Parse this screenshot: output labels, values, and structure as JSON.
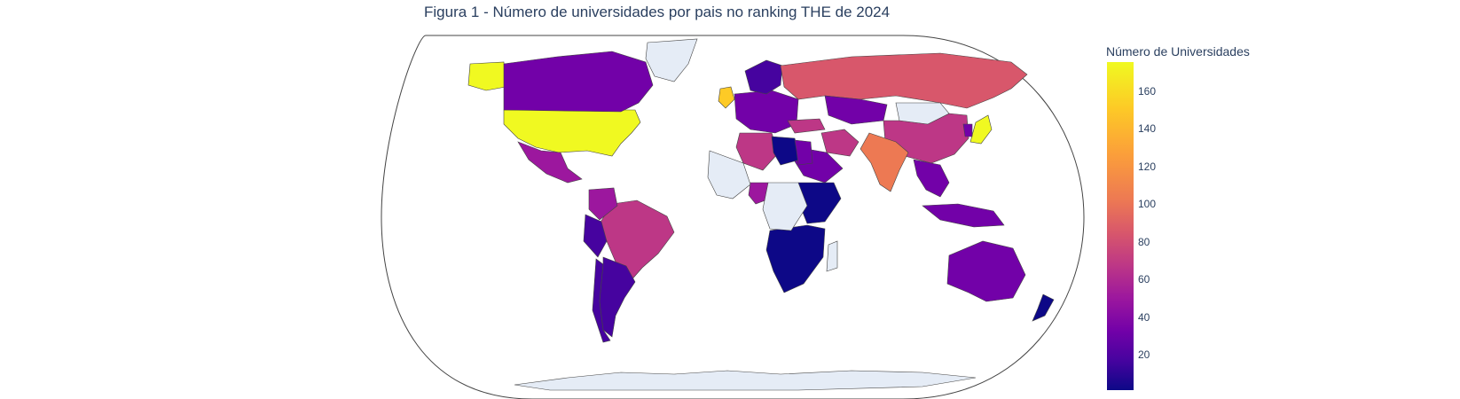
{
  "title": "Figura 1 - Número de universidades por pais no ranking THE de 2024",
  "colorbar": {
    "title": "Número de Universidades",
    "ticks": [
      "160",
      "140",
      "120",
      "100",
      "80",
      "60",
      "40",
      "20"
    ]
  },
  "colors": {
    "no_data": "#e5ecf6",
    "border": "#444444",
    "scale": [
      "#0d0887",
      "#46039f",
      "#7201a8",
      "#9c179e",
      "#bd3786",
      "#d8576b",
      "#ed7953",
      "#fb9f3a",
      "#fdca26",
      "#f0f921"
    ]
  },
  "chart_data": {
    "type": "choropleth",
    "projection": "natural earth",
    "colorbar_range": [
      1,
      175
    ],
    "regions": [
      {
        "name": "United States",
        "value": 170
      },
      {
        "name": "Alaska",
        "value": 170
      },
      {
        "name": "Canada",
        "value": 33
      },
      {
        "name": "Mexico",
        "value": 60
      },
      {
        "name": "Brazil",
        "value": 70
      },
      {
        "name": "Colombia",
        "value": 60
      },
      {
        "name": "Peru",
        "value": 25
      },
      {
        "name": "Chile",
        "value": 20
      },
      {
        "name": "Argentina",
        "value": 15
      },
      {
        "name": "United Kingdom",
        "value": 165
      },
      {
        "name": "Western Europe",
        "value": 45
      },
      {
        "name": "Scandinavia",
        "value": 25
      },
      {
        "name": "Russia",
        "value": 100
      },
      {
        "name": "Kazakhstan",
        "value": 30
      },
      {
        "name": "China",
        "value": 85
      },
      {
        "name": "Mongolia",
        "value": 0
      },
      {
        "name": "India",
        "value": 120
      },
      {
        "name": "Japan",
        "value": 175
      },
      {
        "name": "Korea",
        "value": 45
      },
      {
        "name": "Southeast Asia",
        "value": 30
      },
      {
        "name": "Indonesia",
        "value": 35
      },
      {
        "name": "Australia",
        "value": 40
      },
      {
        "name": "New Zealand",
        "value": 10
      },
      {
        "name": "Turkey",
        "value": 85
      },
      {
        "name": "Iran",
        "value": 70
      },
      {
        "name": "Saudi Arabia",
        "value": 40
      },
      {
        "name": "Algeria",
        "value": 85
      },
      {
        "name": "Libya",
        "value": 10
      },
      {
        "name": "Egypt",
        "value": 40
      },
      {
        "name": "Nigeria",
        "value": 55
      },
      {
        "name": "East Africa",
        "value": 10
      },
      {
        "name": "Southern Africa",
        "value": 10
      },
      {
        "name": "West Africa",
        "value": 0
      },
      {
        "name": "Central Africa",
        "value": 0
      },
      {
        "name": "Madagascar",
        "value": 0
      },
      {
        "name": "Greenland",
        "value": 0
      },
      {
        "name": "Antarctica",
        "value": 0
      }
    ]
  }
}
